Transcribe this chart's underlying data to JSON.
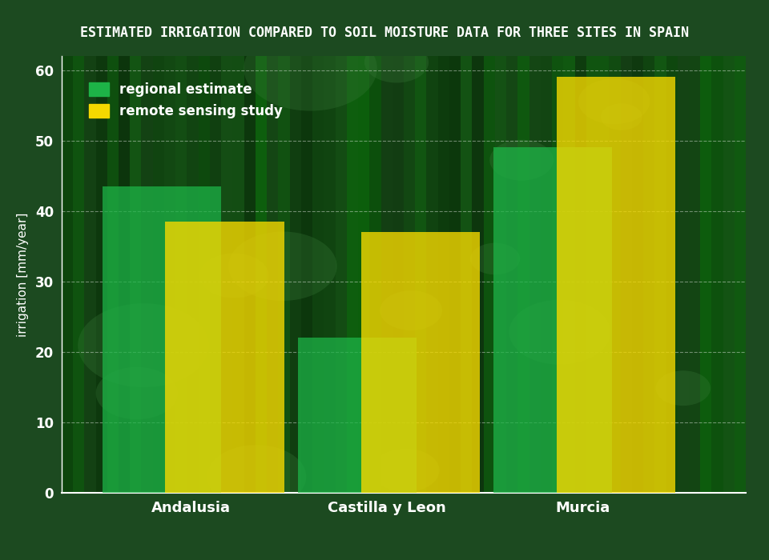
{
  "title": "ESTIMATED IRRIGATION COMPARED TO SOIL MOISTURE DATA FOR THREE SITES IN SPAIN",
  "categories": [
    "Andalusia",
    "Castilla y Leon",
    "Murcia"
  ],
  "regional_estimate": [
    43.5,
    22.0,
    49.0
  ],
  "remote_sensing_study": [
    38.5,
    37.0,
    59.0
  ],
  "ylabel": "irrigation [mm/year]",
  "ylim": [
    0,
    62
  ],
  "yticks": [
    0,
    10,
    20,
    30,
    40,
    50,
    60
  ],
  "bar_width": 0.38,
  "green_color": "#1db347",
  "yellow_color": "#f5d800",
  "green_alpha": 0.75,
  "yellow_alpha": 0.8,
  "bg_color": "#1c4a20",
  "plot_bg_color": "#2a5c2a",
  "title_color": "#ffffff",
  "axis_text_color": "#ffffff",
  "grid_color": "#ffffff",
  "legend_green_label": "regional estimate",
  "legend_yellow_label": "remote sensing study",
  "title_fontsize": 12,
  "tick_fontsize": 12,
  "ylabel_fontsize": 11,
  "xtick_fontsize": 13
}
